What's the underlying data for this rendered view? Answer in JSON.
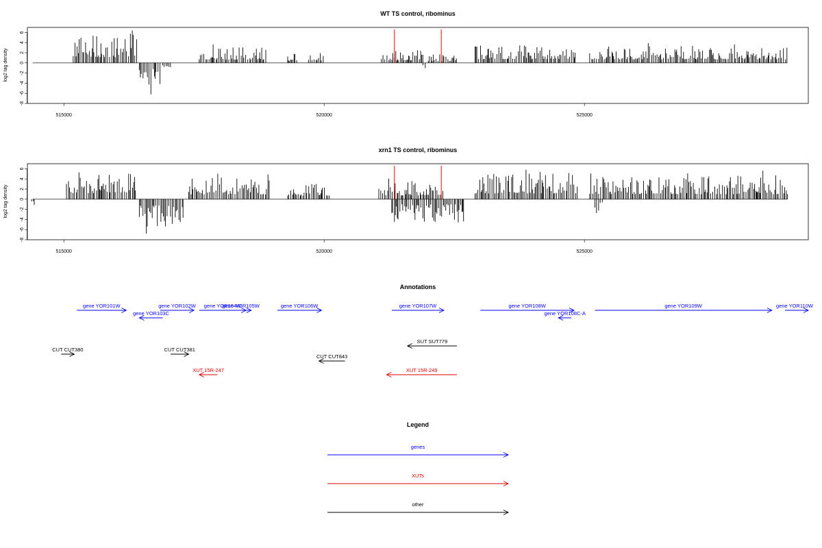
{
  "colors": {
    "gene": "#0000ff",
    "xut": "#e00000",
    "other": "#000000",
    "marker": "#ff0000"
  },
  "chart_data": [
    {
      "type": "bar",
      "title": "WT TS control, ribominus",
      "ylabel": "log2 tag density",
      "xlim": [
        514300,
        529300
      ],
      "ylim": [
        -8,
        7
      ],
      "xticks": [
        515000,
        520000,
        525000
      ],
      "yticks": [
        -8,
        -6,
        -4,
        -2,
        0,
        2,
        4,
        6
      ],
      "markers": [
        521350,
        522250
      ],
      "regions": [
        {
          "start": 515180,
          "end": 516400,
          "amp": 4.6,
          "sign": 1
        },
        {
          "start": 516450,
          "end": 516850,
          "amp": -4.5,
          "sign": -1
        },
        {
          "start": 516900,
          "end": 517050,
          "amp": -1.0,
          "sign": -1
        },
        {
          "start": 517600,
          "end": 518900,
          "amp": 2.6,
          "sign": 1
        },
        {
          "start": 519300,
          "end": 519500,
          "amp": 1.6,
          "sign": 1
        },
        {
          "start": 519700,
          "end": 520000,
          "amp": 2.0,
          "sign": 1
        },
        {
          "start": 521100,
          "end": 521900,
          "amp": 2.0,
          "sign": 1
        },
        {
          "start": 521900,
          "end": 521950,
          "amp": -1.5,
          "sign": -1
        },
        {
          "start": 522000,
          "end": 522550,
          "amp": 1.5,
          "sign": 1
        },
        {
          "start": 522900,
          "end": 524850,
          "amp": 3.0,
          "sign": 1
        },
        {
          "start": 525100,
          "end": 528900,
          "amp": 2.8,
          "sign": 1
        }
      ]
    },
    {
      "type": "bar",
      "title": "xrn1 TS control, ribominus",
      "ylabel": "log2 tag density",
      "xlim": [
        514300,
        529300
      ],
      "ylim": [
        -8,
        7
      ],
      "xticks": [
        515000,
        520000,
        525000
      ],
      "yticks": [
        -8,
        -6,
        -4,
        -2,
        0,
        2,
        4,
        6
      ],
      "markers": [
        521350,
        522250
      ],
      "regions": [
        {
          "start": 514380,
          "end": 514450,
          "amp": -1.5,
          "sign": -1
        },
        {
          "start": 515050,
          "end": 516400,
          "amp": 4.8,
          "sign": 1
        },
        {
          "start": 516450,
          "end": 517300,
          "amp": -5.0,
          "sign": -1
        },
        {
          "start": 517400,
          "end": 518950,
          "amp": 3.8,
          "sign": 1
        },
        {
          "start": 519300,
          "end": 520100,
          "amp": 2.8,
          "sign": 1
        },
        {
          "start": 521050,
          "end": 522300,
          "amp": 3.0,
          "sign": 1
        },
        {
          "start": 521300,
          "end": 522700,
          "amp": -3.8,
          "sign": -1
        },
        {
          "start": 522900,
          "end": 524900,
          "amp": 4.5,
          "sign": 1
        },
        {
          "start": 525100,
          "end": 528900,
          "amp": 4.0,
          "sign": 1
        },
        {
          "start": 525200,
          "end": 525350,
          "amp": -2.5,
          "sign": -1
        }
      ]
    }
  ],
  "annotations": {
    "title": "Annotations",
    "features": [
      {
        "label": "gene YOR101W",
        "start": 515250,
        "end": 516200,
        "dir": 1,
        "type": "gene",
        "lane": 0
      },
      {
        "label": "gene YOR102W",
        "start": 516850,
        "end": 517500,
        "dir": 1,
        "type": "gene",
        "lane": 0
      },
      {
        "label": "gene YOR103C",
        "start": 516450,
        "end": 516900,
        "dir": -1,
        "type": "gene",
        "lane": 1
      },
      {
        "label": "gene YOR104W",
        "start": 517600,
        "end": 518500,
        "dir": 1,
        "type": "gene",
        "lane": 0
      },
      {
        "label": "gene YOR105W",
        "start": 518200,
        "end": 518600,
        "dir": 1,
        "type": "gene",
        "lane": 0
      },
      {
        "label": "gene YOR106W",
        "start": 519100,
        "end": 519950,
        "dir": 1,
        "type": "gene",
        "lane": 0
      },
      {
        "label": "gene YOR107W",
        "start": 521300,
        "end": 522300,
        "dir": 1,
        "type": "gene",
        "lane": 0
      },
      {
        "label": "gene YOR108W",
        "start": 523000,
        "end": 524800,
        "dir": 1,
        "type": "gene",
        "lane": 0
      },
      {
        "label": "gene YOR108C-A",
        "start": 524500,
        "end": 524750,
        "dir": -1,
        "type": "gene",
        "lane": 1
      },
      {
        "label": "gene YOR109W",
        "start": 525200,
        "end": 528600,
        "dir": 1,
        "type": "gene",
        "lane": 0
      },
      {
        "label": "gene YOR110W",
        "start": 528850,
        "end": 529300,
        "dir": 1,
        "type": "gene",
        "lane": 0
      },
      {
        "label": "SUT SUT779",
        "start": 521600,
        "end": 522550,
        "dir": -1,
        "type": "other",
        "lane": 2
      },
      {
        "label": "CUT CUT380",
        "start": 514950,
        "end": 515200,
        "dir": 1,
        "type": "other",
        "lane": 3
      },
      {
        "label": "CUT CUT381",
        "start": 517050,
        "end": 517400,
        "dir": 1,
        "type": "other",
        "lane": 3
      },
      {
        "label": "CUT CUT843",
        "start": 519900,
        "end": 520400,
        "dir": -1,
        "type": "other",
        "lane": 4
      },
      {
        "label": "XUT 15R-247",
        "start": 517600,
        "end": 517950,
        "dir": -1,
        "type": "xut",
        "lane": 5
      },
      {
        "label": "XUT 15R-249",
        "start": 521200,
        "end": 522550,
        "dir": -1,
        "type": "xut",
        "lane": 5
      }
    ]
  },
  "legend": {
    "title": "Legend",
    "items": [
      {
        "label": "genes",
        "type": "gene"
      },
      {
        "label": "XUTs",
        "type": "xut"
      },
      {
        "label": "other",
        "type": "other"
      }
    ]
  }
}
